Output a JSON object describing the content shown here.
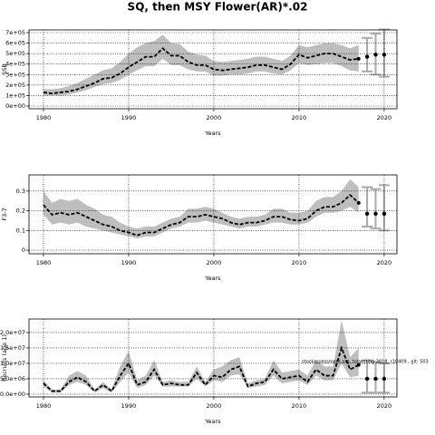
{
  "title": "SQ, then MSY Flower(AR)*.02",
  "annotation": "stockassessment.org, tolsesting 2018, r10409 , git: 503",
  "chart_data": [
    {
      "type": "line",
      "xlabel": "Years",
      "ylabel": "SSB",
      "grid": true,
      "band_color": "#bebebe",
      "xlim": [
        1978.3,
        2021.5
      ],
      "xticks": [
        1980,
        1990,
        2000,
        2010,
        2020
      ],
      "ylim": [
        -26000,
        726000
      ],
      "yticks": [
        {
          "value": 0,
          "label": "0e+00"
        },
        {
          "value": 100000,
          "label": "1e+05"
        },
        {
          "value": 200000,
          "label": "2e+05"
        },
        {
          "value": 300000,
          "label": "3e+05"
        },
        {
          "value": 400000,
          "label": "4e+05"
        },
        {
          "value": 500000,
          "label": "5e+05"
        },
        {
          "value": 600000,
          "label": "6e+05"
        },
        {
          "value": 700000,
          "label": "7e+05"
        }
      ],
      "x": [
        1980,
        1981,
        1982,
        1983,
        1984,
        1985,
        1986,
        1987,
        1988,
        1989,
        1990,
        1991,
        1992,
        1993,
        1994,
        1995,
        1996,
        1997,
        1998,
        1999,
        2000,
        2001,
        2002,
        2003,
        2004,
        2005,
        2006,
        2007,
        2008,
        2009,
        2010,
        2011,
        2012,
        2013,
        2014,
        2015,
        2016,
        2017
      ],
      "series": [
        {
          "color": "#000000",
          "values": [
            130000,
            120000,
            130000,
            140000,
            160000,
            190000,
            220000,
            260000,
            270000,
            310000,
            370000,
            420000,
            470000,
            470000,
            550000,
            480000,
            480000,
            420000,
            390000,
            390000,
            350000,
            340000,
            350000,
            360000,
            370000,
            390000,
            390000,
            370000,
            350000,
            400000,
            490000,
            460000,
            480000,
            500000,
            500000,
            470000,
            440000,
            450000
          ],
          "lower": [
            100000,
            100000,
            100000,
            110000,
            130000,
            150000,
            180000,
            210000,
            220000,
            250000,
            300000,
            340000,
            380000,
            380000,
            450000,
            390000,
            390000,
            350000,
            330000,
            330000,
            290000,
            290000,
            300000,
            300000,
            310000,
            330000,
            330000,
            310000,
            300000,
            340000,
            410000,
            390000,
            400000,
            410000,
            410000,
            380000,
            340000,
            330000
          ],
          "upper": [
            160000,
            160000,
            170000,
            190000,
            220000,
            260000,
            300000,
            340000,
            360000,
            420000,
            500000,
            560000,
            600000,
            620000,
            680000,
            600000,
            590000,
            520000,
            490000,
            480000,
            430000,
            420000,
            430000,
            440000,
            450000,
            470000,
            470000,
            450000,
            430000,
            480000,
            580000,
            560000,
            580000,
            600000,
            600000,
            580000,
            550000,
            580000
          ]
        }
      ],
      "projection": {
        "x": [
          2018,
          2019,
          2020
        ],
        "values": [
          470000,
          490000,
          490000
        ],
        "lower": [
          330000,
          300000,
          280000
        ],
        "upper": [
          650000,
          690000,
          730000
        ]
      }
    },
    {
      "type": "line",
      "xlabel": "Years",
      "ylabel": "F3-7",
      "grid": true,
      "band_color": "#bebebe",
      "xlim": [
        1978.3,
        2021.5
      ],
      "xticks": [
        1980,
        1990,
        2000,
        2010,
        2020
      ],
      "ylim": [
        -0.018,
        0.382
      ],
      "yticks": [
        0,
        0.1,
        0.2,
        0.3
      ],
      "x": [
        1980,
        1981,
        1982,
        1983,
        1984,
        1985,
        1986,
        1987,
        1988,
        1989,
        1990,
        1991,
        1992,
        1993,
        1994,
        1995,
        1996,
        1997,
        1998,
        1999,
        2000,
        2001,
        2002,
        2003,
        2004,
        2005,
        2006,
        2007,
        2008,
        2009,
        2010,
        2011,
        2012,
        2013,
        2014,
        2015,
        2016,
        2017
      ],
      "series": [
        {
          "color": "#000000",
          "values": [
            0.23,
            0.18,
            0.19,
            0.18,
            0.19,
            0.17,
            0.15,
            0.13,
            0.12,
            0.1,
            0.09,
            0.075,
            0.09,
            0.09,
            0.11,
            0.13,
            0.14,
            0.17,
            0.17,
            0.18,
            0.17,
            0.16,
            0.14,
            0.13,
            0.14,
            0.14,
            0.15,
            0.17,
            0.17,
            0.155,
            0.15,
            0.16,
            0.2,
            0.22,
            0.22,
            0.24,
            0.28,
            0.24
          ],
          "lower": [
            0.18,
            0.13,
            0.14,
            0.13,
            0.14,
            0.12,
            0.11,
            0.1,
            0.09,
            0.08,
            0.07,
            0.06,
            0.07,
            0.07,
            0.09,
            0.11,
            0.12,
            0.14,
            0.14,
            0.15,
            0.14,
            0.13,
            0.12,
            0.11,
            0.12,
            0.12,
            0.13,
            0.14,
            0.14,
            0.13,
            0.13,
            0.14,
            0.17,
            0.19,
            0.19,
            0.2,
            0.22,
            0.19
          ],
          "upper": [
            0.3,
            0.24,
            0.26,
            0.25,
            0.26,
            0.23,
            0.21,
            0.18,
            0.17,
            0.14,
            0.12,
            0.11,
            0.12,
            0.12,
            0.14,
            0.16,
            0.17,
            0.21,
            0.21,
            0.22,
            0.21,
            0.19,
            0.17,
            0.16,
            0.17,
            0.17,
            0.18,
            0.21,
            0.21,
            0.19,
            0.19,
            0.2,
            0.25,
            0.27,
            0.27,
            0.3,
            0.36,
            0.32
          ]
        }
      ],
      "projection": {
        "x": [
          2018,
          2019,
          2020
        ],
        "values": [
          0.185,
          0.185,
          0.185
        ],
        "lower": [
          0.12,
          0.11,
          0.1
        ],
        "upper": [
          0.32,
          0.31,
          0.33
        ]
      }
    },
    {
      "type": "line",
      "xlabel": "Years",
      "ylabel": "Recruits (age 1)",
      "grid": true,
      "band_color": "#bebebe",
      "xlim": [
        1978.3,
        2021.5
      ],
      "xticks": [
        1980,
        1990,
        2000,
        2010,
        2020
      ],
      "ylim": [
        -900000,
        24400000
      ],
      "yticks": [
        {
          "value": 0,
          "label": "0.0e+00"
        },
        {
          "value": 5000000,
          "label": "5.0e+06"
        },
        {
          "value": 10000000,
          "label": "1.0e+07"
        },
        {
          "value": 15000000,
          "label": "1.5e+07"
        },
        {
          "value": 20000000,
          "label": "2.0e+07"
        }
      ],
      "x": [
        1980,
        1981,
        1982,
        1983,
        1984,
        1985,
        1986,
        1987,
        1988,
        1989,
        1990,
        1991,
        1992,
        1993,
        1994,
        1995,
        1996,
        1997,
        1998,
        1999,
        2000,
        2001,
        2002,
        2003,
        2004,
        2005,
        2006,
        2007,
        2008,
        2009,
        2010,
        2011,
        2012,
        2013,
        2014,
        2015,
        2016,
        2017
      ],
      "series": [
        {
          "color": "#000000",
          "values": [
            3500000,
            1000000,
            1000000,
            4000000,
            5500000,
            4000000,
            1000000,
            3000000,
            1000000,
            6000000,
            10000000,
            3000000,
            4000000,
            8000000,
            3000000,
            3500000,
            3000000,
            3000000,
            7000000,
            3000000,
            6000000,
            5500000,
            8000000,
            9000000,
            2500000,
            3500000,
            4000000,
            8000000,
            5000000,
            5500000,
            6000000,
            4000000,
            8000000,
            6000000,
            6000000,
            15000000,
            8000000,
            9500000
          ],
          "lower": [
            2500000,
            500000,
            500000,
            3000000,
            4000000,
            3000000,
            500000,
            2000000,
            500000,
            4000000,
            7000000,
            2000000,
            3000000,
            6000000,
            2500000,
            2500000,
            2500000,
            2500000,
            5000000,
            2500000,
            4500000,
            4000000,
            6000000,
            6500000,
            2000000,
            2500000,
            3000000,
            6000000,
            3500000,
            4000000,
            4500000,
            3000000,
            6000000,
            4500000,
            4500000,
            10000000,
            5500000,
            6000000
          ],
          "upper": [
            4500000,
            1500000,
            1500000,
            6000000,
            7500000,
            6000000,
            1500000,
            4000000,
            1500000,
            9000000,
            14000000,
            4500000,
            6000000,
            11000000,
            4000000,
            4500000,
            4000000,
            4000000,
            9000000,
            4000000,
            8000000,
            9000000,
            11000000,
            12000000,
            3500000,
            4500000,
            5000000,
            11000000,
            7000000,
            7500000,
            8000000,
            6000000,
            11000000,
            9000000,
            9000000,
            24000000,
            12000000,
            15000000
          ]
        }
      ],
      "projection": {
        "x": [
          2018,
          2019,
          2020
        ],
        "values": [
          5000000,
          5000000,
          5000000
        ],
        "lower": [
          500000,
          500000,
          500000
        ],
        "upper": [
          11000000,
          10500000,
          10000000
        ]
      }
    }
  ]
}
